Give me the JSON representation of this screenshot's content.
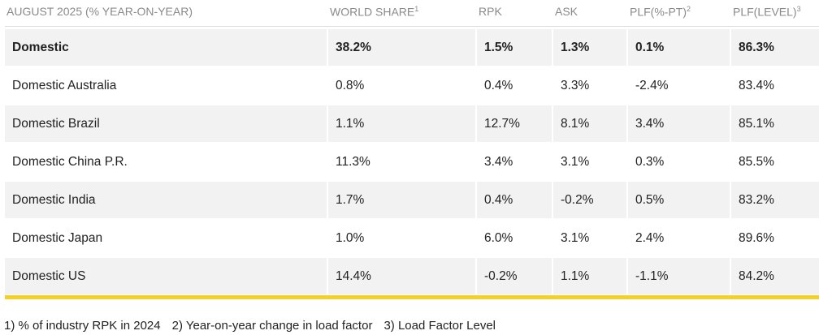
{
  "header": {
    "columns": [
      {
        "text": "AUGUST 2025 (% YEAR-ON-YEAR)"
      },
      {
        "text": "WORLD SHARE",
        "note": "1"
      },
      {
        "text": "RPK"
      },
      {
        "text": "ASK"
      },
      {
        "text": "PLF(%-PT)",
        "note": "2"
      },
      {
        "text": "PLF(LEVEL)",
        "note": "3"
      }
    ]
  },
  "table": {
    "rows": [
      [
        "Domestic",
        "38.2%",
        "1.5%",
        "1.3%",
        "0.1%",
        "86.3%"
      ],
      [
        "Domestic Australia",
        "0.8%",
        "0.4%",
        "3.3%",
        "-2.4%",
        "83.4%"
      ],
      [
        "Domestic Brazil",
        "1.1%",
        "12.7%",
        "8.1%",
        "3.4%",
        "85.1%"
      ],
      [
        "Domestic China P.R.",
        "11.3%",
        "3.4%",
        "3.1%",
        "0.3%",
        "85.5%"
      ],
      [
        "Domestic India",
        "1.7%",
        "0.4%",
        "-0.2%",
        "0.5%",
        "83.2%"
      ],
      [
        "Domestic Japan",
        "1.0%",
        "6.0%",
        "3.1%",
        "2.4%",
        "89.6%"
      ],
      [
        "Domestic US",
        "14.4%",
        "-0.2%",
        "1.1%",
        "-1.1%",
        "84.2%"
      ]
    ]
  },
  "footnotes": [
    "1) % of industry RPK in 2024",
    "2) Year-on-year change in load factor",
    "3) Load Factor Level"
  ]
}
